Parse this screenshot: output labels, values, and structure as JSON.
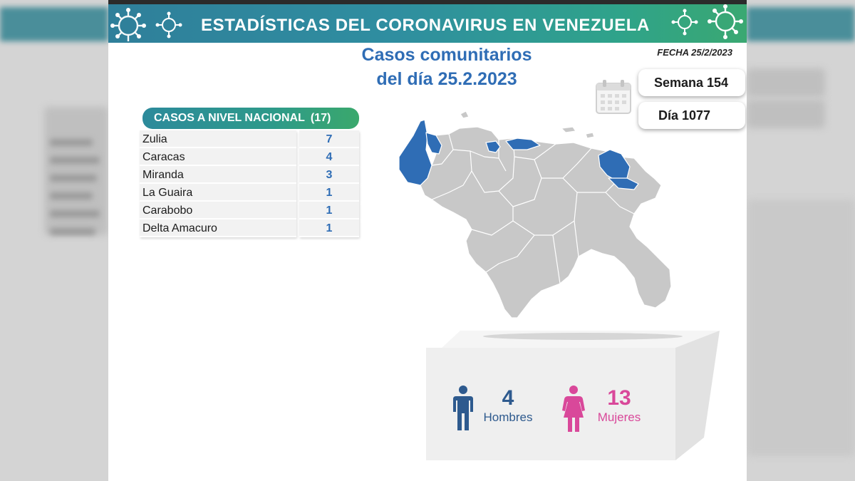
{
  "banner": {
    "title": "ESTADÍSTICAS DEL CORONAVIRUS EN VENEZUELA"
  },
  "subtitle": {
    "line1": "Casos comunitarios",
    "line2": "del día 25.2.2023"
  },
  "fecha": "FECHA 25/2/2023",
  "semana": "Semana 154",
  "dia": "Día 1077",
  "table": {
    "header": "CASOS A NIVEL NACIONAL",
    "total": "(17)",
    "rows": [
      {
        "name": "Zulia",
        "value": "7"
      },
      {
        "name": "Caracas",
        "value": "4"
      },
      {
        "name": "Miranda",
        "value": "3"
      },
      {
        "name": "La Guaira",
        "value": "1"
      },
      {
        "name": "Carabobo",
        "value": "1"
      },
      {
        "name": "Delta Amacuro",
        "value": "1"
      }
    ]
  },
  "gender": {
    "men": {
      "count": "4",
      "label": "Hombres"
    },
    "women": {
      "count": "13",
      "label": "Mujeres"
    }
  },
  "colors": {
    "accent_blue": "#2f6db5",
    "banner_teal": "#2f8ea0",
    "map_gray": "#c8c8c8",
    "map_highlight": "#2f6db5",
    "men": "#2e5a8e",
    "women": "#d9489a"
  },
  "icons": [
    "virus-icon",
    "calendar-icon",
    "man-icon",
    "woman-icon"
  ]
}
